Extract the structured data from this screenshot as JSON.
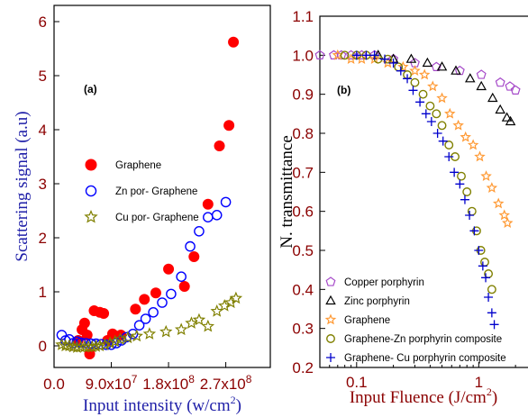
{
  "colors": {
    "a_tick": "#8b0000",
    "a_ylabel": "#1f1fa8",
    "b_tick": "#8b0000",
    "b_xlabel": "#8b0000",
    "b_ylabel": "#000000",
    "graphene_a": "#ff0000",
    "znpor_a": "#0000ff",
    "cupor_a": "#808000",
    "copper": "#a64ac9",
    "zinc": "#000000",
    "graphene_b": "#ff9933",
    "graphene_zn": "#808000",
    "graphene_cu": "#0000cc"
  },
  "chart_data": [
    {
      "panel_label": "(a)",
      "type": "scatter",
      "xlabel": "Input intensity (w/cm²)",
      "ylabel": "Scattering signal (a.u)",
      "xlim": [
        0,
        340000000.0
      ],
      "ylim": [
        -0.4,
        6.3
      ],
      "xticks": [
        0,
        90000000.0,
        180000000.0,
        270000000.0
      ],
      "xtick_labels": [
        "0.0",
        "9.0x10⁷",
        "1.8x10⁸",
        "2.7x10⁸"
      ],
      "yticks": [
        0,
        1,
        2,
        3,
        4,
        5,
        6
      ],
      "ytick_labels": [
        "0",
        "1",
        "2",
        "3",
        "4",
        "5",
        "6"
      ],
      "legend_position": "middle-left",
      "series": [
        {
          "name": "Graphene",
          "marker": "filled-circle",
          "points": [
            [
              38000000.0,
              0.1
            ],
            [
              44000000.0,
              0.3
            ],
            [
              48000000.0,
              0.42
            ],
            [
              52000000.0,
              0.2
            ],
            [
              56000000.0,
              -0.15
            ],
            [
              63000000.0,
              0.65
            ],
            [
              72000000.0,
              0.62
            ],
            [
              78000000.0,
              0.6
            ],
            [
              84000000.0,
              0.1
            ],
            [
              92000000.0,
              0.22
            ],
            [
              105000000.0,
              0.2
            ],
            [
              128000000.0,
              0.68
            ],
            [
              142000000.0,
              0.86
            ],
            [
              160000000.0,
              0.98
            ],
            [
              180000000.0,
              1.42
            ],
            [
              205000000.0,
              1.1
            ],
            [
              220000000.0,
              1.65
            ],
            [
              242000000.0,
              2.62
            ],
            [
              260000000.0,
              3.7
            ],
            [
              275000000.0,
              4.08
            ],
            [
              282000000.0,
              5.62
            ]
          ]
        },
        {
          "name": "Zn por- Graphene",
          "marker": "open-circle",
          "points": [
            [
              12000000.0,
              0.2
            ],
            [
              18000000.0,
              0.1
            ],
            [
              24000000.0,
              0.12
            ],
            [
              30000000.0,
              0.05
            ],
            [
              36000000.0,
              0.08
            ],
            [
              42000000.0,
              0.06
            ],
            [
              50000000.0,
              0.05
            ],
            [
              58000000.0,
              0.04
            ],
            [
              66000000.0,
              0.04
            ],
            [
              74000000.0,
              0.03
            ],
            [
              82000000.0,
              0.02
            ],
            [
              90000000.0,
              0.02
            ],
            [
              98000000.0,
              0.05
            ],
            [
              106000000.0,
              0.1
            ],
            [
              114000000.0,
              0.16
            ],
            [
              124000000.0,
              0.22
            ],
            [
              134000000.0,
              0.38
            ],
            [
              144000000.0,
              0.5
            ],
            [
              156000000.0,
              0.62
            ],
            [
              170000000.0,
              0.8
            ],
            [
              184000000.0,
              0.96
            ],
            [
              200000000.0,
              1.28
            ],
            [
              214000000.0,
              1.84
            ],
            [
              228000000.0,
              2.12
            ],
            [
              242000000.0,
              2.38
            ],
            [
              256000000.0,
              2.42
            ],
            [
              270000000.0,
              2.66
            ]
          ]
        },
        {
          "name": "Cu por- Graphene",
          "marker": "open-star",
          "points": [
            [
              12000000.0,
              0.02
            ],
            [
              18000000.0,
              0.0
            ],
            [
              24000000.0,
              0.0
            ],
            [
              30000000.0,
              -0.02
            ],
            [
              36000000.0,
              -0.03
            ],
            [
              42000000.0,
              -0.02
            ],
            [
              48000000.0,
              -0.02
            ],
            [
              54000000.0,
              -0.02
            ],
            [
              60000000.0,
              -0.02
            ],
            [
              66000000.0,
              -0.01
            ],
            [
              72000000.0,
              0.0
            ],
            [
              80000000.0,
              0.02
            ],
            [
              88000000.0,
              0.05
            ],
            [
              96000000.0,
              0.08
            ],
            [
              104000000.0,
              0.12
            ],
            [
              116000000.0,
              0.15
            ],
            [
              130000000.0,
              0.18
            ],
            [
              150000000.0,
              0.22
            ],
            [
              176000000.0,
              0.26
            ],
            [
              200000000.0,
              0.3
            ],
            [
              216000000.0,
              0.42
            ],
            [
              228000000.0,
              0.48
            ],
            [
              242000000.0,
              0.36
            ],
            [
              256000000.0,
              0.64
            ],
            [
              268000000.0,
              0.74
            ],
            [
              278000000.0,
              0.8
            ],
            [
              286000000.0,
              0.88
            ]
          ]
        }
      ]
    },
    {
      "panel_label": "(b)",
      "type": "scatter",
      "xscale": "log",
      "xlabel": "Input Fluence (J/cm²)",
      "ylabel": "N. transmittance",
      "xlim": [
        0.05,
        3
      ],
      "ylim": [
        0.2,
        1.1
      ],
      "xticks": [
        0.1,
        1
      ],
      "xtick_labels": [
        "0.1",
        "1"
      ],
      "yticks": [
        0.2,
        0.3,
        0.4,
        0.5,
        0.6,
        0.7,
        0.8,
        0.9,
        1.0,
        1.1
      ],
      "ytick_labels": [
        "0.2",
        "0.3",
        "0.4",
        "0.5",
        "0.6",
        "0.7",
        "0.8",
        "0.9",
        "1.0",
        "1.1"
      ],
      "legend_position": "bottom-left",
      "series": [
        {
          "name": "Copper porphyrin",
          "marker": "open-pentagon",
          "points": [
            [
              0.05,
              1.0
            ],
            [
              0.065,
              1.0
            ],
            [
              0.075,
              1.0
            ],
            [
              0.09,
              1.0
            ],
            [
              0.11,
              1.0
            ],
            [
              0.14,
              1.0
            ],
            [
              0.2,
              0.99
            ],
            [
              0.3,
              0.98
            ],
            [
              0.45,
              0.97
            ],
            [
              0.7,
              0.96
            ],
            [
              1.05,
              0.95
            ],
            [
              1.5,
              0.93
            ],
            [
              1.8,
              0.92
            ],
            [
              2.0,
              0.91
            ]
          ]
        },
        {
          "name": "Zinc porphyrin",
          "marker": "open-triangle",
          "points": [
            [
              0.15,
              1.0
            ],
            [
              0.2,
              0.99
            ],
            [
              0.28,
              0.99
            ],
            [
              0.38,
              0.98
            ],
            [
              0.5,
              0.97
            ],
            [
              0.65,
              0.96
            ],
            [
              0.85,
              0.94
            ],
            [
              1.05,
              0.92
            ],
            [
              1.3,
              0.89
            ],
            [
              1.5,
              0.86
            ],
            [
              1.7,
              0.84
            ],
            [
              1.82,
              0.83
            ]
          ]
        },
        {
          "name": "Graphene",
          "marker": "open-star",
          "points": [
            [
              0.07,
              1.0
            ],
            [
              0.09,
              0.99
            ],
            [
              0.11,
              0.99
            ],
            [
              0.14,
              0.99
            ],
            [
              0.18,
              0.98
            ],
            [
              0.24,
              0.97
            ],
            [
              0.3,
              0.96
            ],
            [
              0.36,
              0.95
            ],
            [
              0.42,
              0.92
            ],
            [
              0.5,
              0.89
            ],
            [
              0.58,
              0.85
            ],
            [
              0.68,
              0.82
            ],
            [
              0.78,
              0.79
            ],
            [
              0.9,
              0.77
            ],
            [
              1.02,
              0.74
            ],
            [
              1.15,
              0.69
            ],
            [
              1.28,
              0.66
            ],
            [
              1.45,
              0.62
            ],
            [
              1.62,
              0.59
            ],
            [
              1.72,
              0.57
            ]
          ]
        },
        {
          "name": "Graphene-Zn porphyrin composite",
          "marker": "open-circle",
          "points": [
            [
              0.08,
              1.0
            ],
            [
              0.1,
              1.0
            ],
            [
              0.12,
              1.0
            ],
            [
              0.15,
              0.99
            ],
            [
              0.18,
              0.99
            ],
            [
              0.22,
              0.97
            ],
            [
              0.26,
              0.95
            ],
            [
              0.3,
              0.93
            ],
            [
              0.35,
              0.9
            ],
            [
              0.4,
              0.87
            ],
            [
              0.45,
              0.85
            ],
            [
              0.5,
              0.82
            ],
            [
              0.57,
              0.77
            ],
            [
              0.64,
              0.74
            ],
            [
              0.72,
              0.69
            ],
            [
              0.8,
              0.65
            ],
            [
              0.88,
              0.6
            ],
            [
              0.96,
              0.55
            ],
            [
              1.04,
              0.5
            ],
            [
              1.12,
              0.47
            ],
            [
              1.2,
              0.44
            ],
            [
              1.28,
              0.4
            ]
          ]
        },
        {
          "name": "Graphene- Cu porphyrin composite",
          "marker": "plus",
          "points": [
            [
              0.1,
              1.0
            ],
            [
              0.12,
              1.0
            ],
            [
              0.14,
              1.0
            ],
            [
              0.17,
              0.99
            ],
            [
              0.2,
              0.98
            ],
            [
              0.23,
              0.96
            ],
            [
              0.26,
              0.94
            ],
            [
              0.29,
              0.91
            ],
            [
              0.33,
              0.88
            ],
            [
              0.37,
              0.85
            ],
            [
              0.41,
              0.83
            ],
            [
              0.46,
              0.8
            ],
            [
              0.51,
              0.78
            ],
            [
              0.57,
              0.74
            ],
            [
              0.63,
              0.7
            ],
            [
              0.7,
              0.67
            ],
            [
              0.77,
              0.63
            ],
            [
              0.84,
              0.59
            ],
            [
              0.92,
              0.55
            ],
            [
              1.0,
              0.5
            ],
            [
              1.08,
              0.46
            ],
            [
              1.14,
              0.43
            ],
            [
              1.2,
              0.38
            ],
            [
              1.28,
              0.34
            ],
            [
              1.34,
              0.31
            ]
          ]
        }
      ]
    }
  ]
}
